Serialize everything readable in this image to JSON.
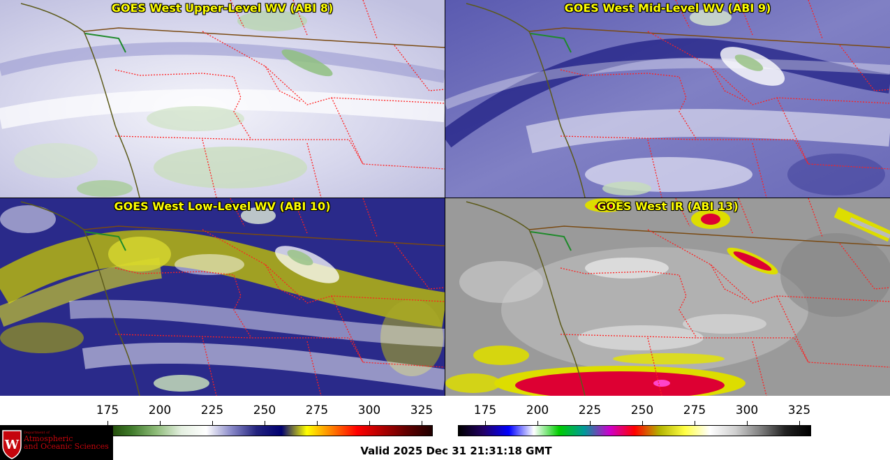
{
  "panels": [
    {
      "id": "p0",
      "title": "GOES West Upper-Level WV (ABI 8)",
      "palette": "wv"
    },
    {
      "id": "p1",
      "title": "GOES West Mid-Level WV (ABI 9)",
      "palette": "wv-mid"
    },
    {
      "id": "p2",
      "title": "GOES West Low-Level WV (ABI 10)",
      "palette": "wv-low"
    },
    {
      "id": "p3",
      "title": "GOES West IR (ABI 13)",
      "palette": "ir"
    }
  ],
  "colorbar_left": {
    "ticks": [
      "175",
      "200",
      "225",
      "250",
      "275",
      "300",
      "325"
    ],
    "stops": [
      "#000000",
      "#1a3d00",
      "#3f7a2a",
      "#8dbb78",
      "#e4efe0",
      "#ffffff",
      "#8888c8",
      "#23237e",
      "#000070",
      "#ffff00",
      "#ff8000",
      "#ff0000",
      "#b00000",
      "#600000",
      "#200000"
    ]
  },
  "colorbar_right": {
    "ticks": [
      "175",
      "200",
      "225",
      "250",
      "275",
      "300",
      "325"
    ],
    "stops": [
      "#000000",
      "#220066",
      "#0000ff",
      "#ffffff",
      "#00cc00",
      "#009999",
      "#cc00cc",
      "#ff0000",
      "#b3b300",
      "#ffff44",
      "#ffffff",
      "#d0d0d0",
      "#808080",
      "#202020",
      "#000000"
    ]
  },
  "logo": {
    "dept_small": "Department of",
    "line1": "Atmospheric",
    "line2": "and Oceanic Sciences"
  },
  "valid_time": "Valid 2025 Dec 31 21:31:18 GMT"
}
